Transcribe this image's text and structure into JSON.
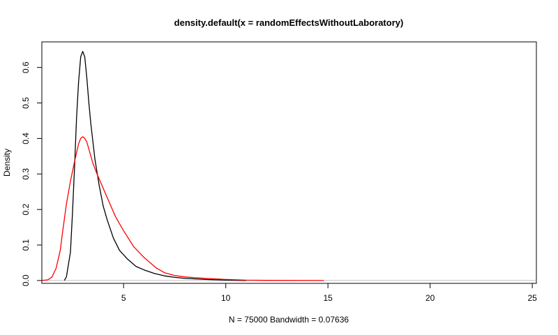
{
  "chart_data": {
    "type": "line",
    "title": "density.default(x = randomEffectsWithoutLaboratory)",
    "xlabel": "N = 75000   Bandwidth = 0.07636",
    "ylabel": "Density",
    "xlim": [
      1.0,
      25.2
    ],
    "ylim": [
      -0.008,
      0.672
    ],
    "xticks": [
      5,
      10,
      15,
      20,
      25
    ],
    "yticks": [
      0.0,
      0.1,
      0.2,
      0.3,
      0.4,
      0.5,
      0.6
    ],
    "xtick_labels": [
      "5",
      "10",
      "15",
      "20",
      "25"
    ],
    "ytick_labels": [
      "0.0",
      "0.1",
      "0.2",
      "0.3",
      "0.4",
      "0.5",
      "0.6"
    ],
    "grid": false,
    "baseline": 0,
    "series": [
      {
        "color": "#000000",
        "x": [
          2.1,
          2.2,
          2.4,
          2.5,
          2.6,
          2.7,
          2.8,
          2.9,
          3.0,
          3.1,
          3.2,
          3.3,
          3.4,
          3.6,
          3.8,
          4.0,
          4.2,
          4.5,
          4.8,
          5.2,
          5.6,
          6.0,
          6.5,
          7.0,
          7.5,
          8.0,
          9.0,
          10.0,
          11.0
        ],
        "y": [
          0.0,
          0.01,
          0.08,
          0.19,
          0.32,
          0.46,
          0.56,
          0.63,
          0.645,
          0.63,
          0.57,
          0.5,
          0.44,
          0.34,
          0.27,
          0.21,
          0.17,
          0.12,
          0.085,
          0.06,
          0.04,
          0.03,
          0.02,
          0.013,
          0.009,
          0.006,
          0.003,
          0.001,
          0.0
        ]
      },
      {
        "color": "#ff0000",
        "x": [
          1.0,
          1.3,
          1.5,
          1.7,
          1.9,
          2.0,
          2.2,
          2.4,
          2.6,
          2.8,
          2.9,
          3.0,
          3.1,
          3.2,
          3.3,
          3.5,
          3.7,
          4.0,
          4.3,
          4.6,
          5.0,
          5.5,
          6.0,
          6.3,
          6.6,
          7.0,
          7.5,
          8.0,
          9.0,
          10.0,
          11.0,
          12.0,
          14.8
        ],
        "y": [
          0.0,
          0.002,
          0.01,
          0.035,
          0.085,
          0.13,
          0.215,
          0.28,
          0.335,
          0.385,
          0.4,
          0.405,
          0.4,
          0.39,
          0.37,
          0.33,
          0.3,
          0.26,
          0.22,
          0.18,
          0.14,
          0.095,
          0.065,
          0.05,
          0.035,
          0.022,
          0.014,
          0.01,
          0.006,
          0.003,
          0.001,
          0.0005,
          0.0
        ]
      }
    ]
  }
}
